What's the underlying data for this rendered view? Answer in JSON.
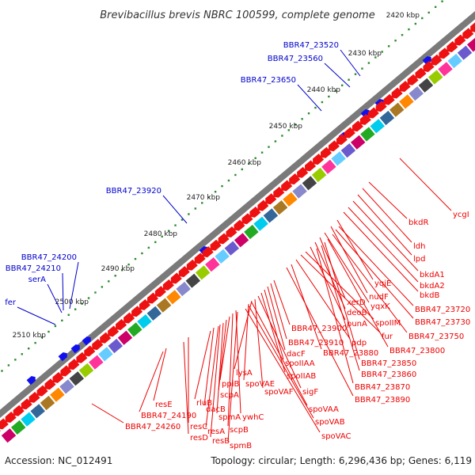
{
  "title": "Brevibacillus brevis NBRC 100599, complete genome",
  "footer": {
    "accession": "Accession: NC_012491",
    "summary": "Topology: circular; Length: 6,296,436 bp; Genes: 6,119"
  },
  "colors": {
    "forward_label": "#0000cc",
    "reverse_label": "#ee0000",
    "backbone": "#808080",
    "kbp_dot": "#2e8b2e"
  },
  "kbp_ticks": [
    "2420 kbp",
    "2430 kbp",
    "2440 kbp",
    "2450 kbp",
    "2460 kbp",
    "2470 kbp",
    "2480 kbp",
    "2490 kbp",
    "2500 kbp",
    "2510 kbp"
  ],
  "forward_labels": [
    "BBR47_23520",
    "BBR47_23560",
    "BBR47_23650",
    "BBR47_23920",
    "BBR47_24200",
    "BBR47_24210",
    "serA",
    "fer"
  ],
  "reverse_labels": [
    "ycgI",
    "bkdR",
    "ldh",
    "lpd",
    "bkdA1",
    "bkdA2",
    "bkdB",
    "yqjE",
    "nudF",
    "yqxK",
    "xerD",
    "deoB",
    "punA",
    "spoIIM",
    "BBR47_23720",
    "BBR47_23730",
    "fur",
    "BBR47_23750",
    "pdp",
    "BBR47_23800",
    "BBR47_23880",
    "BBR47_23900",
    "BBR47_23910",
    "dacF",
    "spoIIAA",
    "spoIIAB",
    "sigF",
    "BBR47_23850",
    "BBR47_23860",
    "BBR47_23870",
    "BBR47_23890",
    "lysA",
    "spoVAE",
    "spoVAF",
    "spoVAA",
    "spoVAB",
    "spoVAC",
    "ppiB",
    "scpA",
    "scpB",
    "ywhC",
    "spmA",
    "spmB",
    "dacB",
    "rluB",
    "resE",
    "BBR47_24190",
    "resC",
    "resA",
    "resD",
    "resB",
    "BBR47_24260"
  ]
}
